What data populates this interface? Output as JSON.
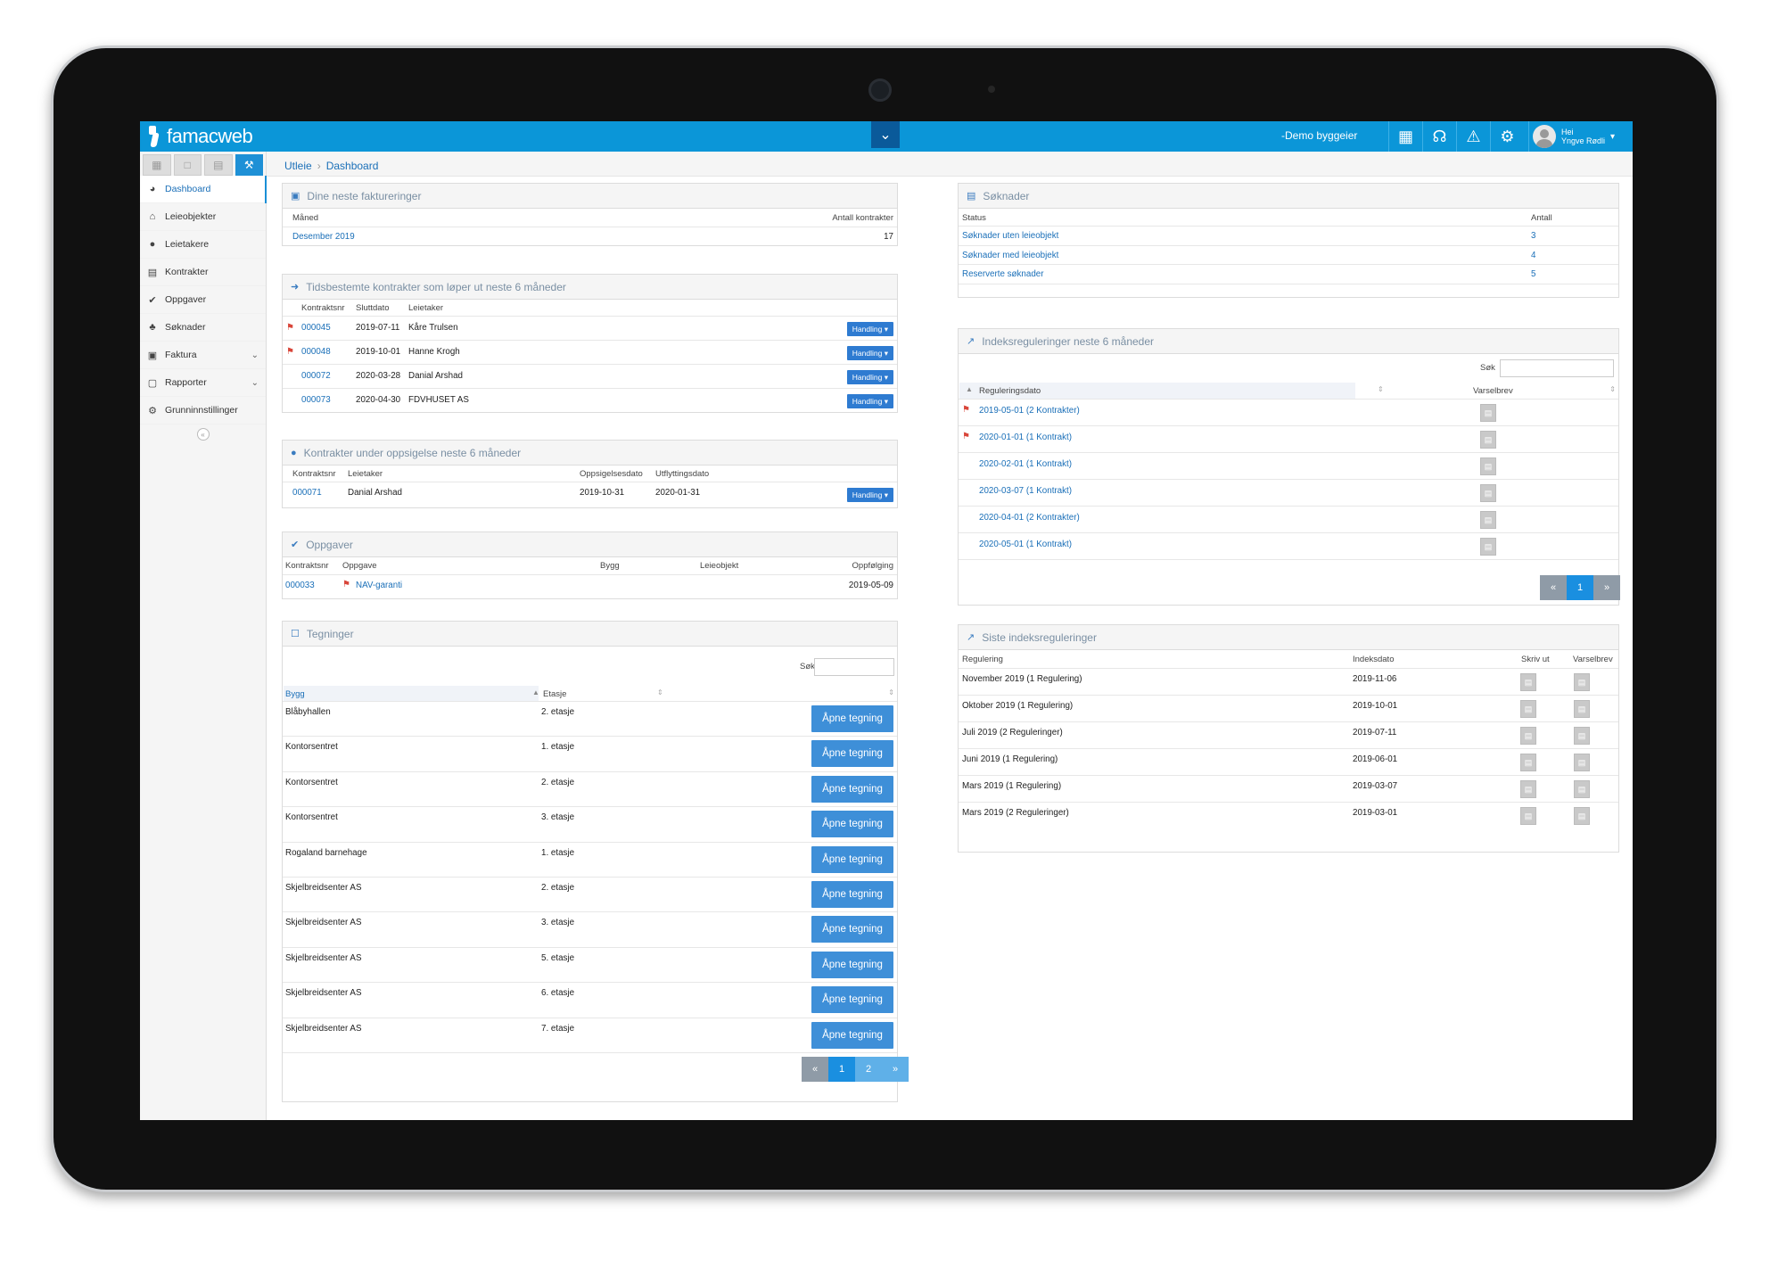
{
  "app": {
    "logo_text": "famacweb",
    "owner": "-Demo byggeier",
    "user_greeting": "Hei",
    "user_name": "Yngve Rødli"
  },
  "topbar_icons": [
    "building-icon",
    "headset-icon",
    "warning-icon",
    "gear-icon"
  ],
  "breadcrumb": {
    "root": "Utleie",
    "current": "Dashboard"
  },
  "sidebar": {
    "items": [
      {
        "label": "Dashboard",
        "icon": "dashboard-icon"
      },
      {
        "label": "Leieobjekter",
        "icon": "home-icon"
      },
      {
        "label": "Leietakere",
        "icon": "user-icon"
      },
      {
        "label": "Kontrakter",
        "icon": "briefcase-icon"
      },
      {
        "label": "Oppgaver",
        "icon": "check-icon"
      },
      {
        "label": "Søknader",
        "icon": "stamp-icon"
      },
      {
        "label": "Faktura",
        "icon": "money-icon"
      },
      {
        "label": "Rapporter",
        "icon": "document-icon"
      },
      {
        "label": "Grunninnstillinger",
        "icon": "gear-icon"
      }
    ]
  },
  "fakturering": {
    "title": "Dine neste faktureringer",
    "headers": {
      "maned": "Måned",
      "antall": "Antall kontrakter"
    },
    "rows": [
      {
        "maned": "Desember 2019",
        "antall": "17"
      }
    ]
  },
  "tidsbestemte": {
    "title": "Tidsbestemte kontrakter som løper ut neste 6 måneder",
    "headers": {
      "nr": "Kontraktsnr",
      "slutt": "Sluttdato",
      "leietaker": "Leietaker"
    },
    "action_label": "Handling",
    "rows": [
      {
        "nr": "000045",
        "slutt": "2019-07-11",
        "leietaker": "Kåre Trulsen",
        "flag": true
      },
      {
        "nr": "000048",
        "slutt": "2019-10-01",
        "leietaker": "Hanne Krogh",
        "flag": true
      },
      {
        "nr": "000072",
        "slutt": "2020-03-28",
        "leietaker": "Danial Arshad",
        "flag": false
      },
      {
        "nr": "000073",
        "slutt": "2020-04-30",
        "leietaker": "FDVHUSET AS",
        "flag": false
      }
    ]
  },
  "oppsigelse": {
    "title": "Kontrakter under oppsigelse neste 6 måneder",
    "headers": {
      "nr": "Kontraktsnr",
      "leietaker": "Leietaker",
      "opps": "Oppsigelsesdato",
      "utfl": "Utflyttingsdato"
    },
    "action_label": "Handling",
    "rows": [
      {
        "nr": "000071",
        "leietaker": "Danial Arshad",
        "opps": "2019-10-31",
        "utfl": "2020-01-31"
      }
    ]
  },
  "oppgaver": {
    "title": "Oppgaver",
    "headers": {
      "nr": "Kontraktsnr",
      "oppgave": "Oppgave",
      "bygg": "Bygg",
      "leieobjekt": "Leieobjekt",
      "oppfolging": "Oppfølging"
    },
    "rows": [
      {
        "nr": "000033",
        "oppgave": "NAV-garanti",
        "oppfolging": "2019-05-09"
      }
    ]
  },
  "tegninger": {
    "title": "Tegninger",
    "sok_label": "Søk",
    "headers": {
      "bygg": "Bygg",
      "etasje": "Etasje"
    },
    "button_label": "Åpne tegning",
    "rows": [
      {
        "bygg": "Blåbyhallen",
        "etasje": "2. etasje"
      },
      {
        "bygg": "Kontorsentret",
        "etasje": "1. etasje"
      },
      {
        "bygg": "Kontorsentret",
        "etasje": "2. etasje"
      },
      {
        "bygg": "Kontorsentret",
        "etasje": "3. etasje"
      },
      {
        "bygg": "Rogaland barnehage",
        "etasje": "1. etasje"
      },
      {
        "bygg": "Skjelbreidsenter AS",
        "etasje": "2. etasje"
      },
      {
        "bygg": "Skjelbreidsenter AS",
        "etasje": "3. etasje"
      },
      {
        "bygg": "Skjelbreidsenter AS",
        "etasje": "5. etasje"
      },
      {
        "bygg": "Skjelbreidsenter AS",
        "etasje": "6. etasje"
      },
      {
        "bygg": "Skjelbreidsenter AS",
        "etasje": "7. etasje"
      }
    ],
    "pager": {
      "prev": "«",
      "pages": [
        "1",
        "2"
      ],
      "next": "»"
    }
  },
  "soknader": {
    "title": "Søknader",
    "headers": {
      "status": "Status",
      "antall": "Antall"
    },
    "rows": [
      {
        "status": "Søknader uten leieobjekt",
        "antall": "3"
      },
      {
        "status": "Søknader med leieobjekt",
        "antall": "4"
      },
      {
        "status": "Reserverte søknader",
        "antall": "5"
      }
    ]
  },
  "indeks": {
    "title": "Indeksreguleringer neste 6 måneder",
    "sok_label": "Søk",
    "headers": {
      "dato": "Reguleringsdato",
      "varsel": "Varselbrev"
    },
    "rows": [
      {
        "dato": "2019-05-01 (2 Kontrakter)",
        "flag": true
      },
      {
        "dato": "2020-01-01 (1 Kontrakt)",
        "flag": true
      },
      {
        "dato": "2020-02-01 (1 Kontrakt)",
        "flag": false
      },
      {
        "dato": "2020-03-07 (1 Kontrakt)",
        "flag": false
      },
      {
        "dato": "2020-04-01 (2 Kontrakter)",
        "flag": false
      },
      {
        "dato": "2020-05-01 (1 Kontrakt)",
        "flag": false
      }
    ],
    "pager": {
      "prev": "«",
      "pages": [
        "1"
      ],
      "next": "»"
    }
  },
  "siste": {
    "title": "Siste indeksreguleringer",
    "headers": {
      "reg": "Regulering",
      "dato": "Indeksdato",
      "skriv": "Skriv ut",
      "varsel": "Varselbrev"
    },
    "rows": [
      {
        "reg": "November 2019 (1 Regulering)",
        "dato": "2019-11-06"
      },
      {
        "reg": "Oktober 2019 (1 Regulering)",
        "dato": "2019-10-01"
      },
      {
        "reg": "Juli 2019 (2 Reguleringer)",
        "dato": "2019-07-11"
      },
      {
        "reg": "Juni 2019 (1 Regulering)",
        "dato": "2019-06-01"
      },
      {
        "reg": "Mars 2019 (1 Regulering)",
        "dato": "2019-03-07"
      },
      {
        "reg": "Mars 2019 (2 Reguleringer)",
        "dato": "2019-03-01"
      }
    ]
  }
}
